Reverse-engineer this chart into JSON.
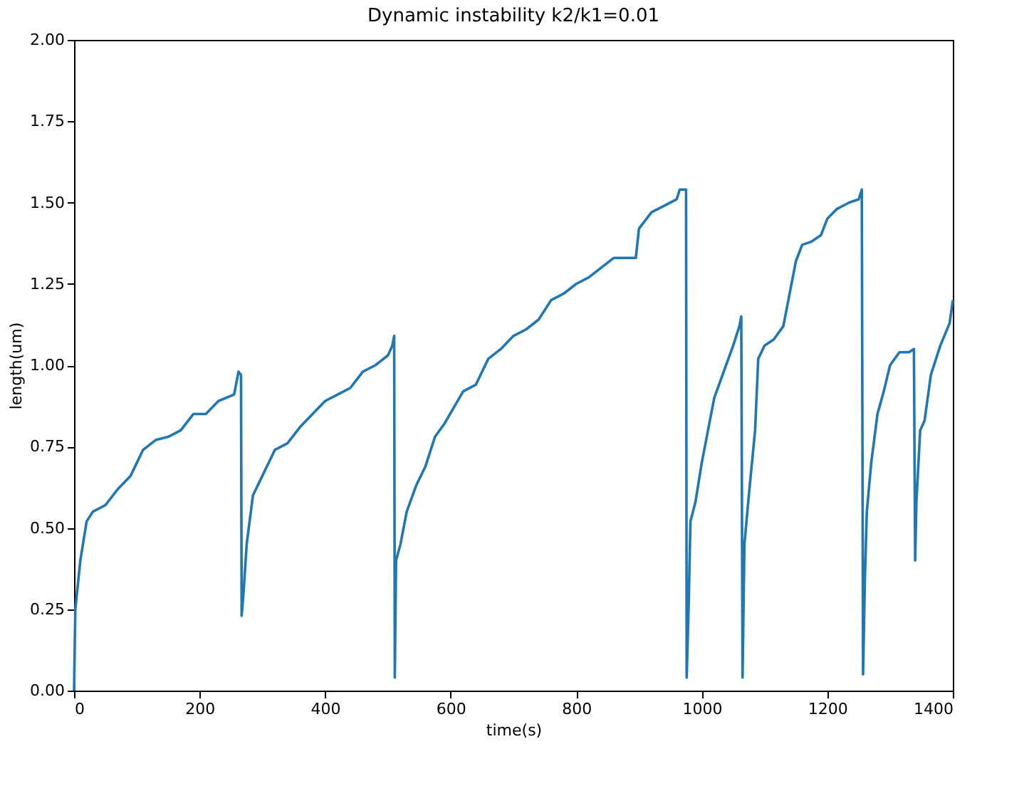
{
  "chart_data": {
    "type": "line",
    "title": "Dynamic instability k2/k1=0.01",
    "xlabel": "time(s)",
    "ylabel": "length(um)",
    "xlim": [
      0,
      1400
    ],
    "xticks": [
      0,
      200,
      400,
      600,
      800,
      1000,
      1200,
      1400
    ],
    "ylim": [
      0,
      2
    ],
    "yticks": [
      {
        "value": 0,
        "label": "0.00"
      },
      {
        "value": 0.25,
        "label": "0.25"
      },
      {
        "value": 0.5,
        "label": "0.50"
      },
      {
        "value": 0.75,
        "label": "0.75"
      },
      {
        "value": 1,
        "label": "1.00"
      },
      {
        "value": 1.25,
        "label": "1.25"
      },
      {
        "value": 1.5,
        "label": "1.50"
      },
      {
        "value": 1.75,
        "label": "1.75"
      },
      {
        "value": 2,
        "label": "2.00"
      }
    ],
    "grid": false,
    "line_style": "solid",
    "marker": "none",
    "series": [
      {
        "color": "#1f77b4",
        "x": [
          0,
          2,
          10,
          20,
          30,
          50,
          70,
          90,
          110,
          130,
          150,
          170,
          190,
          210,
          230,
          255,
          262,
          266,
          267,
          270,
          275,
          285,
          300,
          320,
          340,
          360,
          380,
          400,
          420,
          440,
          460,
          480,
          500,
          507,
          510,
          511,
          513,
          520,
          530,
          545,
          560,
          575,
          590,
          605,
          620,
          640,
          660,
          680,
          700,
          720,
          740,
          760,
          780,
          800,
          820,
          840,
          860,
          880,
          895,
          900,
          920,
          940,
          960,
          965,
          975,
          976,
          979,
          982,
          990,
          1000,
          1010,
          1020,
          1035,
          1050,
          1060,
          1063,
          1065,
          1068,
          1075,
          1085,
          1090,
          1100,
          1115,
          1130,
          1140,
          1150,
          1160,
          1175,
          1190,
          1200,
          1215,
          1235,
          1250,
          1255,
          1257,
          1260,
          1263,
          1270,
          1280,
          1290,
          1300,
          1315,
          1330,
          1338,
          1340,
          1342,
          1348,
          1355,
          1365,
          1380,
          1395,
          1400
        ],
        "values": [
          0,
          0.25,
          0.4,
          0.52,
          0.55,
          0.57,
          0.62,
          0.66,
          0.74,
          0.77,
          0.78,
          0.8,
          0.85,
          0.85,
          0.89,
          0.91,
          0.98,
          0.97,
          0.23,
          0.3,
          0.45,
          0.6,
          0.66,
          0.74,
          0.76,
          0.81,
          0.85,
          0.89,
          0.91,
          0.93,
          0.98,
          1.0,
          1.03,
          1.06,
          1.09,
          0.04,
          0.4,
          0.45,
          0.55,
          0.63,
          0.69,
          0.78,
          0.82,
          0.87,
          0.92,
          0.94,
          1.02,
          1.05,
          1.09,
          1.11,
          1.14,
          1.2,
          1.22,
          1.25,
          1.27,
          1.3,
          1.33,
          1.33,
          1.33,
          1.42,
          1.47,
          1.49,
          1.51,
          1.54,
          1.54,
          0.04,
          0.25,
          0.52,
          0.58,
          0.7,
          0.8,
          0.9,
          0.98,
          1.06,
          1.12,
          1.15,
          0.04,
          0.45,
          0.6,
          0.8,
          1.02,
          1.06,
          1.08,
          1.12,
          1.22,
          1.32,
          1.37,
          1.38,
          1.4,
          1.45,
          1.48,
          1.5,
          1.51,
          1.54,
          0.05,
          0.35,
          0.55,
          0.7,
          0.85,
          0.92,
          1.0,
          1.04,
          1.04,
          1.05,
          0.4,
          0.58,
          0.8,
          0.83,
          0.97,
          1.06,
          1.13,
          1.2
        ]
      }
    ]
  }
}
